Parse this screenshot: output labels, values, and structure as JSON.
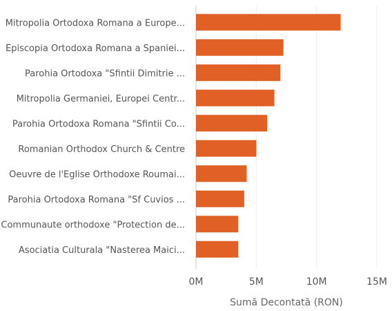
{
  "chart_data": {
    "type": "bar",
    "orientation": "horizontal",
    "categories": [
      "Mitropolia Ortodoxa Romana a Europe...",
      "Episcopia Ortodoxa Romana a Spaniei...",
      "Parohia Ortodoxa \"Sfintii Dimitrie ...",
      "Mitropolia Germaniei, Europei Centr...",
      "Parohia Ortodoxa Romana \"Sfintii Co...",
      "Romanian Orthodox Church & Centre",
      "Oeuvre de l'Eglise Orthodoxe Roumai...",
      "Parohia Ortodoxa Romana \"Sf Cuvios ...",
      "Communaute orthodoxe \"Protection de...",
      "Asociatia Culturala \"Nasterea Maici..."
    ],
    "values": [
      12000000,
      7250000,
      7000000,
      6500000,
      5900000,
      5000000,
      4200000,
      4000000,
      3500000,
      3500000
    ],
    "xlabel": "Sumă Decontată (RON)",
    "ylabel": "",
    "xlim": [
      0,
      15000000
    ],
    "ticks": [
      {
        "value": 0,
        "label": "0M"
      },
      {
        "value": 5000000,
        "label": "5M"
      },
      {
        "value": 10000000,
        "label": "10M"
      },
      {
        "value": 15000000,
        "label": "15M"
      }
    ],
    "bar_color": "#E06026",
    "grid": true,
    "legend": "none"
  }
}
